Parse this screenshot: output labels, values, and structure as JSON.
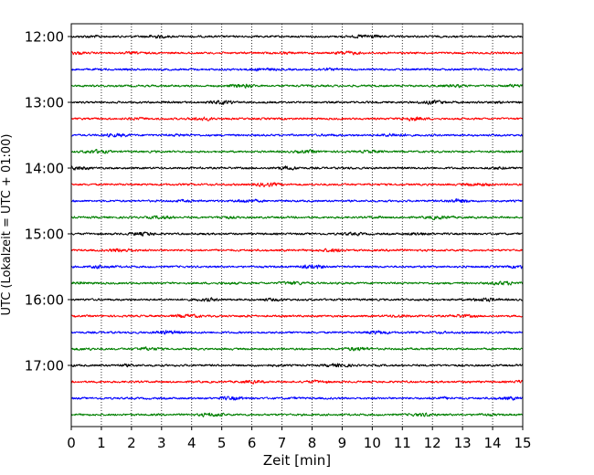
{
  "chart_data": {
    "type": "line",
    "title": "",
    "xlabel": "Zeit  [min]",
    "ylabel": "UTC (Lokalzeit = UTC + 01:00)",
    "xlim": [
      0,
      15
    ],
    "x_ticks": [
      "0",
      "1",
      "2",
      "3",
      "4",
      "5",
      "6",
      "7",
      "8",
      "9",
      "10",
      "11",
      "12",
      "13",
      "14",
      "15"
    ],
    "y_tick_labels": [
      "12:00",
      "13:00",
      "14:00",
      "15:00",
      "16:00",
      "17:00"
    ],
    "trace_interval_minutes": 15,
    "grid": "vertical-dotted",
    "trace_colors": [
      "#000000",
      "#ff0000",
      "#0000ff",
      "#008000"
    ],
    "traces": [
      {
        "start": "12:00",
        "color": "#000000"
      },
      {
        "start": "12:15",
        "color": "#ff0000"
      },
      {
        "start": "12:30",
        "color": "#0000ff"
      },
      {
        "start": "12:45",
        "color": "#008000"
      },
      {
        "start": "13:00",
        "color": "#000000"
      },
      {
        "start": "13:15",
        "color": "#ff0000"
      },
      {
        "start": "13:30",
        "color": "#0000ff"
      },
      {
        "start": "13:45",
        "color": "#008000"
      },
      {
        "start": "14:00",
        "color": "#000000"
      },
      {
        "start": "14:15",
        "color": "#ff0000"
      },
      {
        "start": "14:30",
        "color": "#0000ff"
      },
      {
        "start": "14:45",
        "color": "#008000"
      },
      {
        "start": "15:00",
        "color": "#000000"
      },
      {
        "start": "15:15",
        "color": "#ff0000"
      },
      {
        "start": "15:30",
        "color": "#0000ff"
      },
      {
        "start": "15:45",
        "color": "#008000"
      },
      {
        "start": "16:00",
        "color": "#000000"
      },
      {
        "start": "16:15",
        "color": "#ff0000"
      },
      {
        "start": "16:30",
        "color": "#0000ff"
      },
      {
        "start": "16:45",
        "color": "#008000"
      },
      {
        "start": "17:00",
        "color": "#000000"
      },
      {
        "start": "17:15",
        "color": "#ff0000"
      },
      {
        "start": "17:30",
        "color": "#0000ff"
      },
      {
        "start": "17:45",
        "color": "#008000"
      }
    ]
  }
}
